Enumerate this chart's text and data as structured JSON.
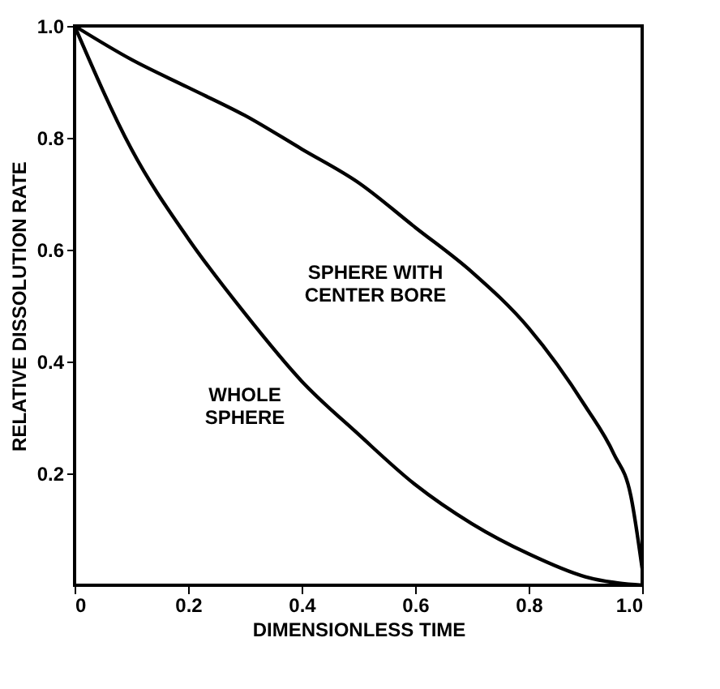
{
  "chart_data": {
    "type": "line",
    "xlabel": "DIMENSIONLESS TIME",
    "ylabel": "RELATIVE DISSOLUTION RATE",
    "x": [
      0,
      0.1,
      0.2,
      0.3,
      0.4,
      0.5,
      0.6,
      0.7,
      0.8,
      0.9,
      0.95,
      0.98,
      1.0
    ],
    "series": [
      {
        "color": "#000000",
        "x": [
          0,
          0.1,
          0.2,
          0.3,
          0.4,
          0.5,
          0.6,
          0.7,
          0.8,
          0.9,
          1.0
        ],
        "values": [
          1.0,
          0.78,
          0.62,
          0.486,
          0.365,
          0.27,
          0.18,
          0.11,
          0.056,
          0.015,
          0
        ]
      },
      {
        "color": "#000000",
        "values": [
          1.0,
          0.94,
          0.89,
          0.84,
          0.78,
          0.72,
          0.64,
          0.56,
          0.46,
          0.32,
          0.235,
          0.16,
          0.03
        ]
      }
    ],
    "annotations": [
      "WHOLE\nSPHERE",
      "SPHERE WITH\nCENTER BORE"
    ],
    "xlim": [
      0,
      1.0
    ],
    "ylim": [
      0,
      1.0
    ],
    "xticks": [
      {
        "value": 0,
        "label": "0"
      },
      0.2,
      0.4,
      0.6,
      0.8,
      {
        "value": 1.0,
        "label": "1.0"
      }
    ],
    "yticks": [
      0.2,
      0.4,
      0.6,
      0.8,
      {
        "value": 1.0,
        "label": "1.0"
      }
    ],
    "grid": false,
    "marker": "none",
    "line_style": "solid"
  }
}
